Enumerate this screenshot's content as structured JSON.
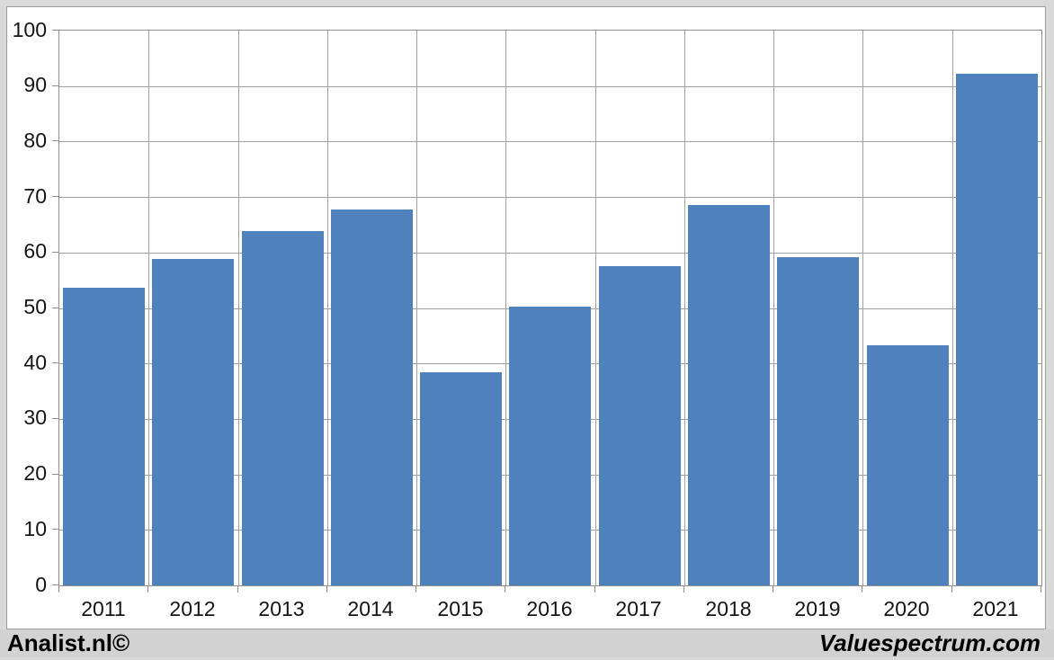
{
  "window": {
    "background_color": "#d9d9d9",
    "panel_background_color": "#ffffff",
    "footer_background_color": "#d2d2d2"
  },
  "chart_data": {
    "type": "bar",
    "title": "",
    "xlabel": "",
    "ylabel": "",
    "categories": [
      "2011",
      "2012",
      "2013",
      "2014",
      "2015",
      "2016",
      "2017",
      "2018",
      "2019",
      "2020",
      "2021"
    ],
    "values": [
      53.7,
      58.8,
      63.8,
      67.7,
      38.4,
      50.3,
      57.6,
      68.5,
      59.1,
      43.2,
      92.2
    ],
    "ylim": [
      0,
      100
    ],
    "ytick_interval": 10,
    "ytick_labels": [
      "0",
      "10",
      "20",
      "30",
      "40",
      "50",
      "60",
      "70",
      "80",
      "90",
      "100"
    ],
    "grid": {
      "horizontal": true,
      "vertical": true
    },
    "legend": "none",
    "bar_color": "#4f81bd",
    "gridline_color": "#a0a0a0",
    "axis_text_color": "#141414"
  },
  "footer": {
    "left_text": "Analist.nl©",
    "right_text": "Valuespectrum.com"
  }
}
